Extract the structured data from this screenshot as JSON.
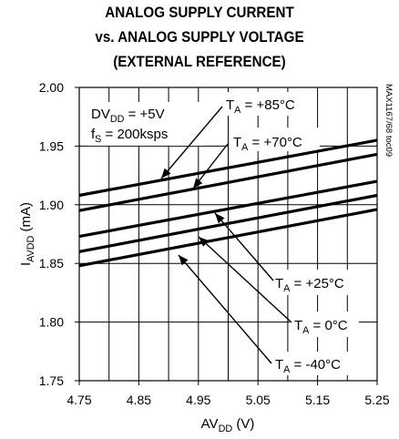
{
  "chart_data": {
    "type": "line",
    "title_lines": [
      "ANALOG SUPPLY CURRENT",
      "vs. ANALOG SUPPLY VOLTAGE",
      "(EXTERNAL REFERENCE)"
    ],
    "xlabel": {
      "base": "AV",
      "sub": "DD",
      "tail": " (V)"
    },
    "ylabel": {
      "base": "I",
      "sub": "AVDD",
      "tail": " (mA)"
    },
    "xlim": [
      4.75,
      5.25
    ],
    "ylim": [
      1.75,
      2.0
    ],
    "x_ticks": [
      "4.75",
      "4.85",
      "4.95",
      "5.05",
      "5.15",
      "5.25"
    ],
    "y_ticks": [
      "2.00",
      "1.95",
      "1.90",
      "1.85",
      "1.80",
      "1.75"
    ],
    "grid": true,
    "watermark": "MAX1167/68 toc09",
    "conditions": [
      {
        "base": "DV",
        "sub": "DD",
        "tail": " = +5V"
      },
      {
        "base": "f",
        "sub": "S",
        "tail": " = 200ksps"
      }
    ],
    "series": [
      {
        "name": "TA = +85°C",
        "label": {
          "sub": "A",
          "value": " = +85°C"
        },
        "x": [
          4.75,
          5.25
        ],
        "values": [
          1.908,
          1.955
        ]
      },
      {
        "name": "TA = +70°C",
        "label": {
          "sub": "A",
          "value": " = +70°C"
        },
        "x": [
          4.75,
          5.25
        ],
        "values": [
          1.895,
          1.943
        ]
      },
      {
        "name": "TA = +25°C",
        "label": {
          "sub": "A",
          "value": " = +25°C"
        },
        "x": [
          4.75,
          5.25
        ],
        "values": [
          1.873,
          1.92
        ]
      },
      {
        "name": "TA = 0°C",
        "label": {
          "sub": "A",
          "value": " = 0°C"
        },
        "x": [
          4.75,
          5.25
        ],
        "values": [
          1.86,
          1.908
        ]
      },
      {
        "name": "TA = -40°C",
        "label": {
          "sub": "A",
          "value": " = -40°C"
        },
        "x": [
          4.75,
          5.25
        ],
        "values": [
          1.848,
          1.896
        ]
      }
    ]
  }
}
